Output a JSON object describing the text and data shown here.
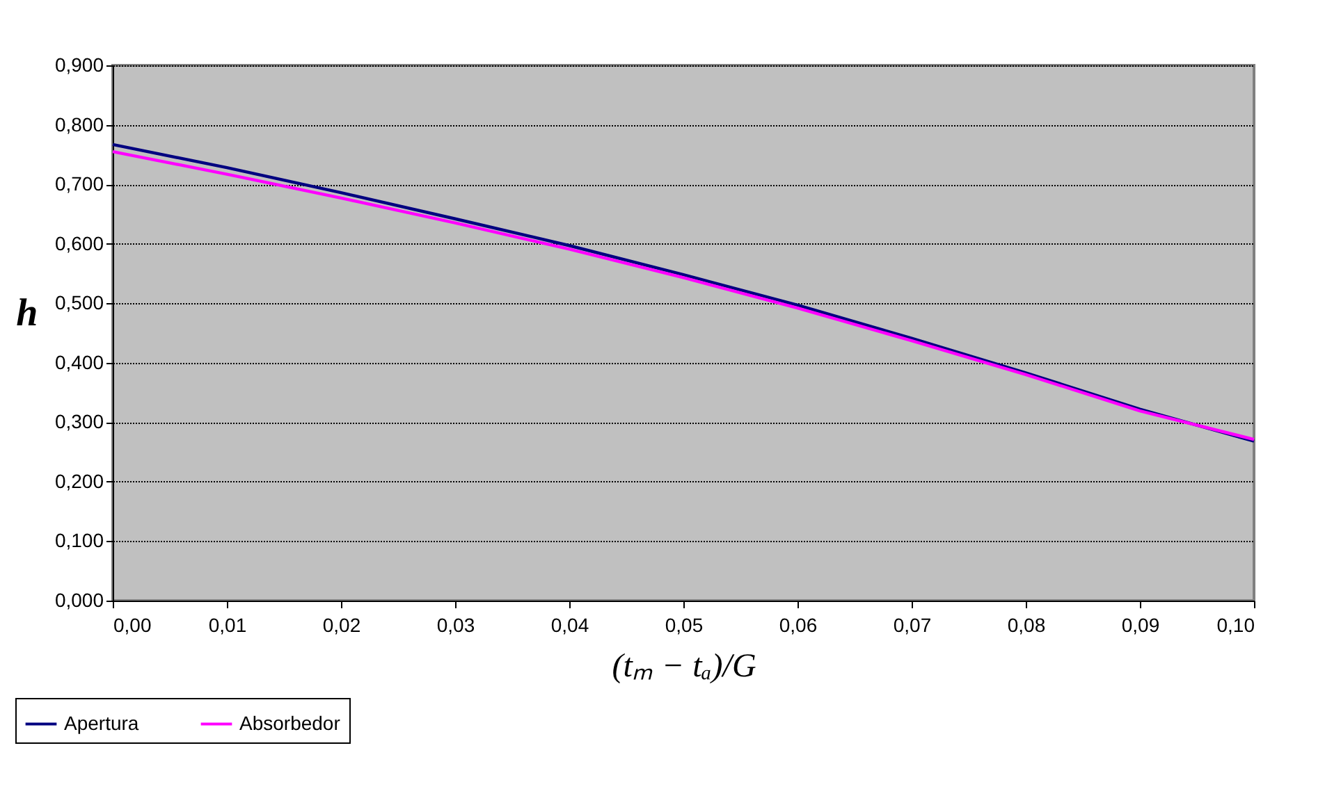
{
  "chart_data": {
    "type": "line",
    "xlabel": "(tₘ − tₐ)/G",
    "ylabel": "h",
    "x": [
      0.0,
      0.01,
      0.02,
      0.03,
      0.04,
      0.05,
      0.06,
      0.07,
      0.08,
      0.09,
      0.1
    ],
    "series": [
      {
        "name": "Apertura",
        "color": "#000080",
        "values": [
          0.767,
          0.728,
          0.686,
          0.642,
          0.597,
          0.548,
          0.497,
          0.441,
          0.383,
          0.322,
          0.268
        ]
      },
      {
        "name": "Absorbedor",
        "color": "#ff00ff",
        "values": [
          0.755,
          0.717,
          0.677,
          0.635,
          0.591,
          0.543,
          0.492,
          0.437,
          0.38,
          0.319,
          0.271
        ]
      }
    ],
    "xlim": [
      0.0,
      0.1
    ],
    "xticks": [
      {
        "value": 0.0,
        "label": "0,00"
      },
      {
        "value": 0.01,
        "label": "0,01"
      },
      {
        "value": 0.02,
        "label": "0,02"
      },
      {
        "value": 0.03,
        "label": "0,03"
      },
      {
        "value": 0.04,
        "label": "0,04"
      },
      {
        "value": 0.05,
        "label": "0,05"
      },
      {
        "value": 0.06,
        "label": "0,06"
      },
      {
        "value": 0.07,
        "label": "0,07"
      },
      {
        "value": 0.08,
        "label": "0,08"
      },
      {
        "value": 0.09,
        "label": "0,09"
      },
      {
        "value": 0.1,
        "label": "0,10"
      }
    ],
    "ylim": [
      0.0,
      0.9
    ],
    "yticks": [
      {
        "value": 0.0,
        "label": "0,000"
      },
      {
        "value": 0.1,
        "label": "0,100"
      },
      {
        "value": 0.2,
        "label": "0,200"
      },
      {
        "value": 0.3,
        "label": "0,300"
      },
      {
        "value": 0.4,
        "label": "0,400"
      },
      {
        "value": 0.5,
        "label": "0,500"
      },
      {
        "value": 0.6,
        "label": "0,600"
      },
      {
        "value": 0.7,
        "label": "0,700"
      },
      {
        "value": 0.8,
        "label": "0,800"
      },
      {
        "value": 0.9,
        "label": "0,900"
      }
    ],
    "grid": "y",
    "legend": "bottom left",
    "marker": "none",
    "line_style": "solid"
  }
}
